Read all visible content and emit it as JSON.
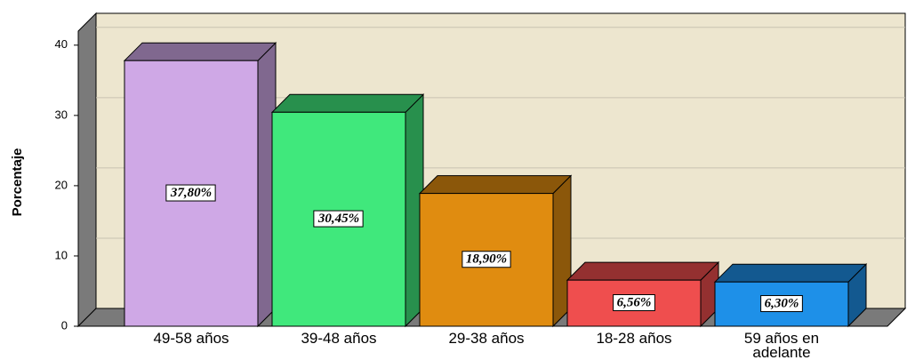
{
  "chart_data": {
    "type": "bar3d",
    "y_label": "Porcentaje",
    "categories": [
      "49-58 años",
      "39-48 años",
      "29-38 años",
      "18-28 años",
      "59 años en adelante"
    ],
    "values": [
      37.8,
      30.45,
      18.9,
      6.56,
      6.3
    ],
    "value_labels": [
      "37,80%",
      "30,45%",
      "18,90%",
      "6,56%",
      "6,30%"
    ],
    "colors": [
      "#cfa8e6",
      "#40e87c",
      "#e08c10",
      "#ef4e4e",
      "#1e90e8"
    ],
    "ylim": [
      0,
      42
    ],
    "yticks": [
      0,
      10,
      20,
      30,
      40
    ],
    "grid": true
  }
}
